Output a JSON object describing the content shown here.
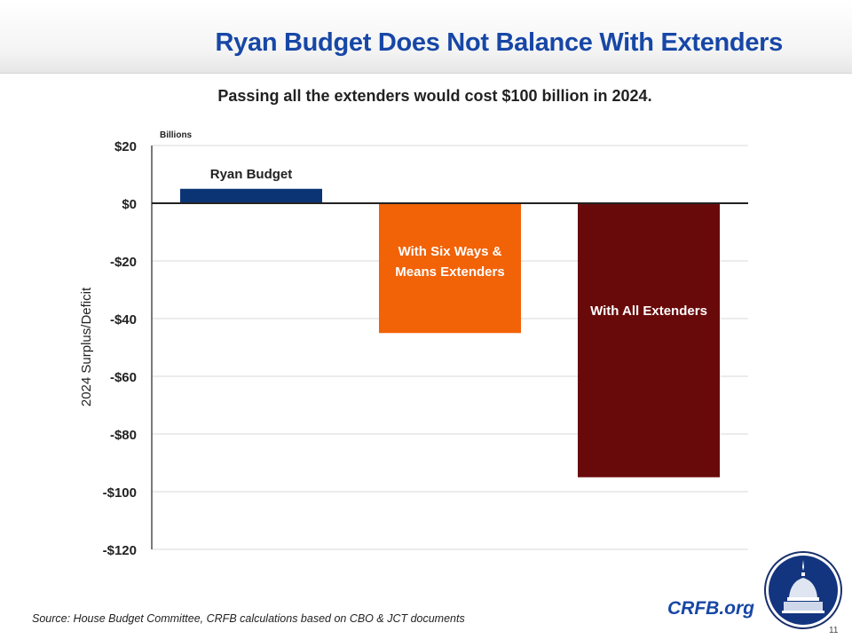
{
  "header": {
    "title": "Ryan Budget Does Not Balance With Extenders"
  },
  "subtitle": "Passing all the extenders would cost $100 billion in 2024.",
  "footer": {
    "source": "Source: House Budget Committee, CRFB calculations based on CBO & JCT documents",
    "brand": "CRFB.org",
    "page_number": "11",
    "logo_icon": "capitol-dome-icon"
  },
  "colors": {
    "title": "#1747a6",
    "ryan": "#0b3474",
    "six_ways": "#f26207",
    "all_ext": "#690a0a"
  },
  "chart_data": {
    "type": "bar",
    "title": "Passing all the extenders would cost $100 billion in 2024.",
    "units_label": "Billions",
    "xlabel": "",
    "ylabel": "2024 Surplus/Deficit",
    "ylim": [
      -120,
      20
    ],
    "yticks": [
      20,
      0,
      -20,
      -40,
      -60,
      -80,
      -100,
      -120
    ],
    "ytick_labels": [
      "$20",
      "$0",
      "-$20",
      "-$40",
      "-$60",
      "-$80",
      "-$100",
      "-$120"
    ],
    "grid": true,
    "legend": "none",
    "categories": [
      "Ryan Budget",
      "With Six Ways & Means Extenders",
      "With All Extenders"
    ],
    "values": [
      5,
      -45,
      -95
    ],
    "bar_labels": [
      [
        "Ryan Budget"
      ],
      [
        "With Six Ways &",
        "Means Extenders"
      ],
      [
        "With All Extenders"
      ]
    ],
    "bar_colors": [
      "#0b3474",
      "#f26207",
      "#690a0a"
    ]
  }
}
